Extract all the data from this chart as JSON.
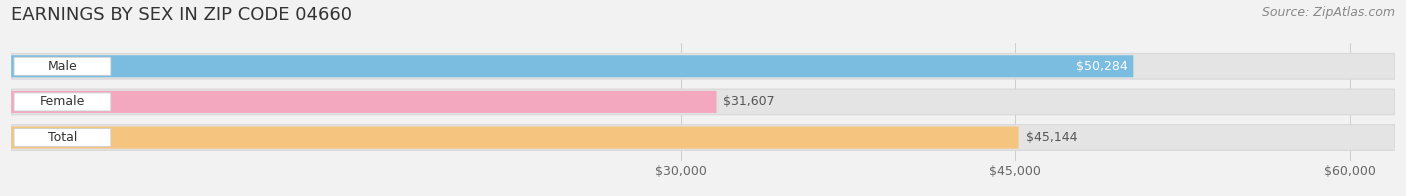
{
  "title": "EARNINGS BY SEX IN ZIP CODE 04660",
  "source": "Source: ZipAtlas.com",
  "categories": [
    "Male",
    "Female",
    "Total"
  ],
  "values": [
    50284,
    31607,
    45144
  ],
  "bar_colors": [
    "#7abde0",
    "#f4a8c0",
    "#f5c47e"
  ],
  "label_inside": [
    true,
    false,
    false
  ],
  "value_label_colors": [
    "white",
    "#555555",
    "#555555"
  ],
  "x_min": 0,
  "x_max": 62000,
  "x_ticks": [
    30000,
    45000,
    60000
  ],
  "x_tick_labels": [
    "$30,000",
    "$45,000",
    "$60,000"
  ],
  "bg_color": "#f2f2f2",
  "bar_bg_color": "#e4e4e4",
  "bar_bg_edge": "#d8d8d8",
  "title_fontsize": 13,
  "source_fontsize": 9,
  "label_fontsize": 9,
  "category_fontsize": 9,
  "tick_fontsize": 9
}
